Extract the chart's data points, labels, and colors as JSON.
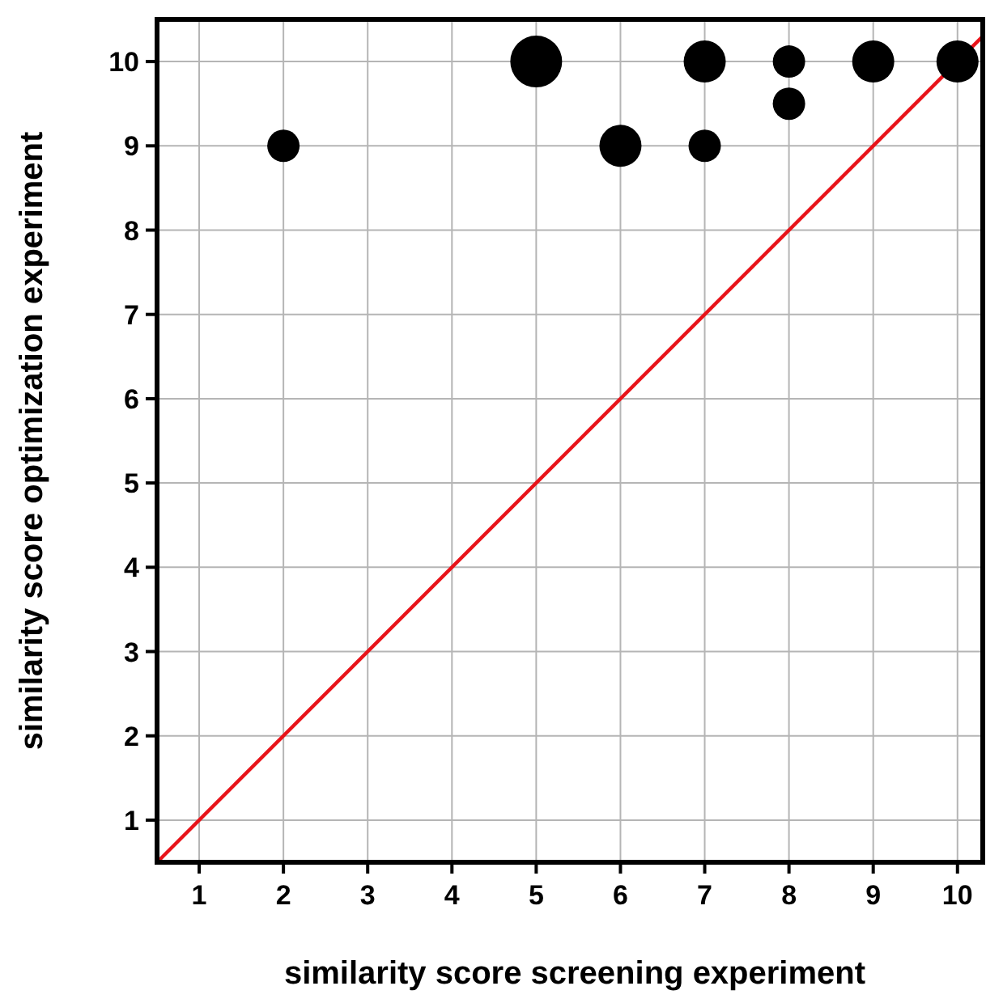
{
  "chart_data": {
    "type": "bubble",
    "xlabel": "similarity score screening experiment",
    "ylabel": "similarity score optimization experiment",
    "xlim": [
      0.5,
      10.3
    ],
    "ylim": [
      0.5,
      10.5
    ],
    "xticks": [
      1,
      2,
      3,
      4,
      5,
      6,
      7,
      8,
      9,
      10
    ],
    "yticks": [
      1,
      2,
      3,
      4,
      5,
      6,
      7,
      8,
      9,
      10
    ],
    "grid": true,
    "series": [
      {
        "color": "#000000",
        "marker": "circle",
        "x": [
          2,
          5,
          6,
          7,
          7,
          8,
          8,
          9,
          10
        ],
        "values": [
          9,
          10,
          9,
          10,
          9,
          10,
          9.5,
          10,
          10
        ],
        "sizes": [
          0.39,
          1,
          0.66,
          0.66,
          0.39,
          0.39,
          0.39,
          0.66,
          0.66
        ]
      },
      {
        "type": "line",
        "color": "#e8141a",
        "line_style": "solid",
        "x": [
          0.5,
          10.3
        ],
        "values": [
          0.5,
          10.3
        ]
      }
    ]
  }
}
